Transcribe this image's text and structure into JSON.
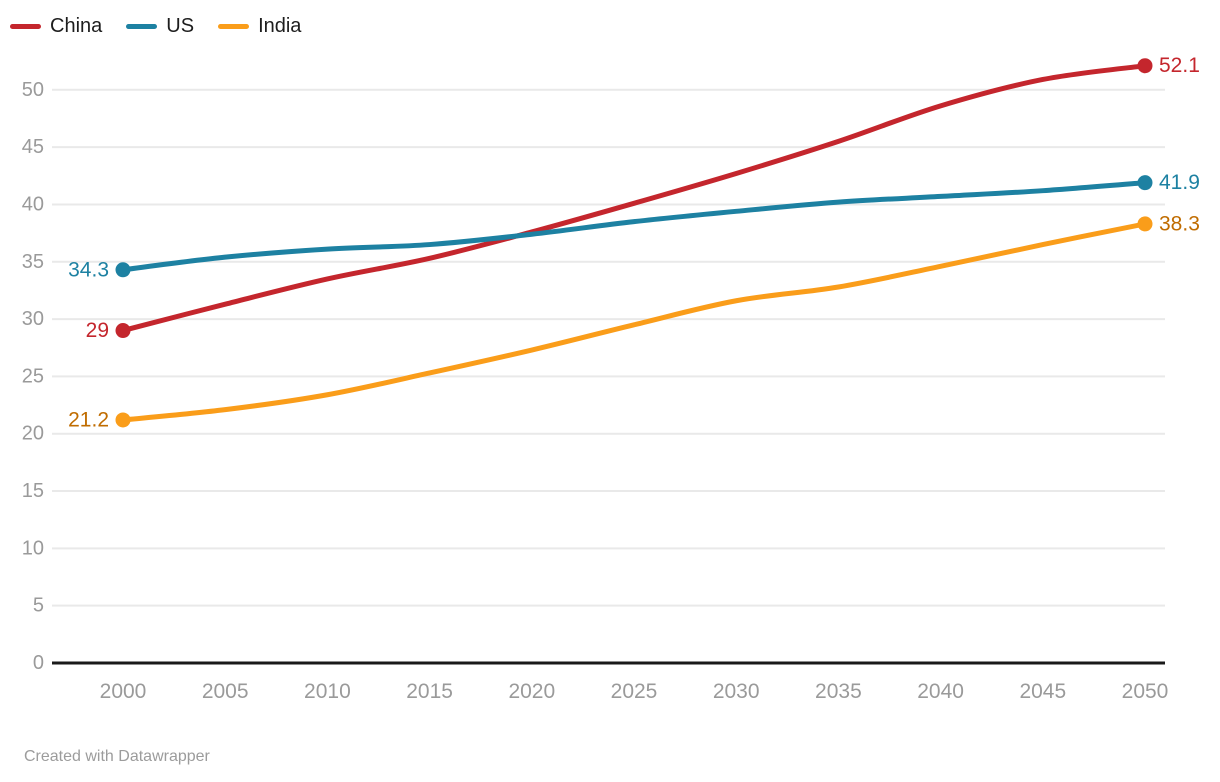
{
  "chart_data": {
    "type": "line",
    "title": "",
    "xlabel": "",
    "ylabel": "",
    "x": [
      2000,
      2005,
      2010,
      2015,
      2020,
      2025,
      2030,
      2035,
      2040,
      2045,
      2050
    ],
    "series": [
      {
        "name": "China",
        "color": "#c4262d",
        "label_color": "#c4262d",
        "values": [
          29,
          31.3,
          33.5,
          35.3,
          37.6,
          40.1,
          42.7,
          45.5,
          48.6,
          50.9,
          52.1
        ],
        "start_label": "29",
        "end_label": "52.1"
      },
      {
        "name": "US",
        "color": "#1d81a2",
        "label_color": "#1d81a2",
        "values": [
          34.3,
          35.4,
          36.1,
          36.5,
          37.4,
          38.5,
          39.4,
          40.2,
          40.7,
          41.2,
          41.9
        ],
        "start_label": "34.3",
        "end_label": "41.9"
      },
      {
        "name": "India",
        "color": "#fa9d1a",
        "label_color": "#c06c00",
        "values": [
          21.2,
          22.1,
          23.4,
          25.3,
          27.3,
          29.5,
          31.6,
          32.8,
          34.6,
          36.5,
          38.3
        ],
        "start_label": "21.2",
        "end_label": "38.3"
      }
    ],
    "y_ticks": [
      0,
      5,
      10,
      15,
      20,
      25,
      30,
      35,
      40,
      45,
      50
    ],
    "x_ticks": [
      2000,
      2005,
      2010,
      2015,
      2020,
      2025,
      2030,
      2035,
      2040,
      2045,
      2050
    ],
    "ylim": [
      0,
      53
    ],
    "grid": true,
    "legend_position": "top-left",
    "axis_color": "#1a1a1a",
    "grid_color": "#e9e9e9",
    "tick_label_color": "#9a9a9a"
  },
  "footer": {
    "credit": "Created with Datawrapper"
  }
}
